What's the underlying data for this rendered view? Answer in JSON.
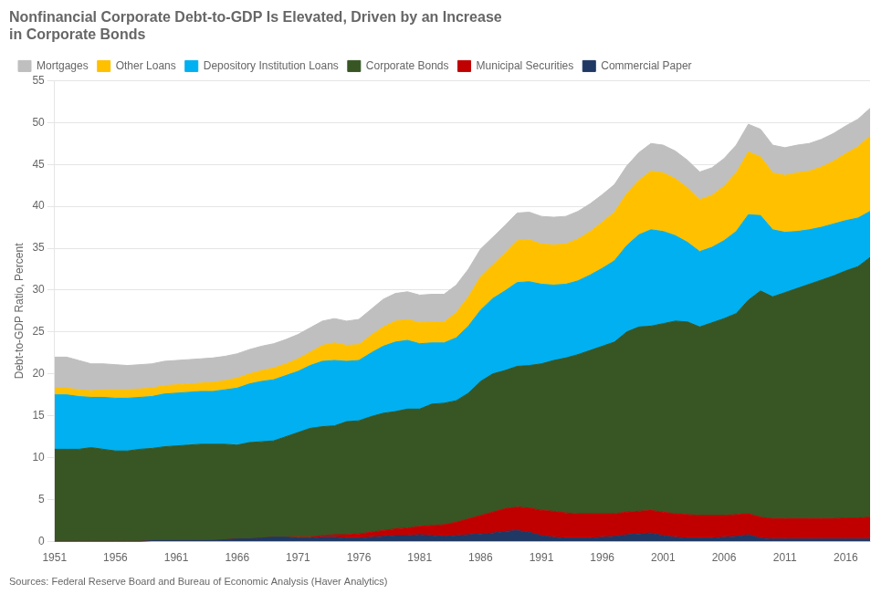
{
  "chart_data": {
    "type": "area",
    "stacked": true,
    "title": "Nonfinancial Corporate Debt-to-GDP Is Elevated, Driven by an Increase\nin Corporate Bonds",
    "ylabel": "Debt-to-GDP Ratio, Percent",
    "source": "Sources: Federal Reserve Board and Bureau of Economic Analysis (Haver Analytics)",
    "x": [
      1951,
      1952,
      1953,
      1954,
      1955,
      1956,
      1957,
      1958,
      1959,
      1960,
      1961,
      1962,
      1963,
      1964,
      1965,
      1966,
      1967,
      1968,
      1969,
      1970,
      1971,
      1972,
      1973,
      1974,
      1975,
      1976,
      1977,
      1978,
      1979,
      1980,
      1981,
      1982,
      1983,
      1984,
      1985,
      1986,
      1987,
      1988,
      1989,
      1990,
      1991,
      1992,
      1993,
      1994,
      1995,
      1996,
      1997,
      1998,
      1999,
      2000,
      2001,
      2002,
      2003,
      2004,
      2005,
      2006,
      2007,
      2008,
      2009,
      2010,
      2011,
      2012,
      2013,
      2014,
      2015,
      2016,
      2017,
      2018
    ],
    "series": [
      {
        "name": "Commercial Paper",
        "color": "#1F3864",
        "values": [
          0.0,
          0.0,
          0.0,
          0.0,
          0.0,
          0.0,
          0.0,
          0.0,
          0.1,
          0.1,
          0.1,
          0.1,
          0.1,
          0.1,
          0.2,
          0.3,
          0.3,
          0.4,
          0.5,
          0.5,
          0.4,
          0.4,
          0.5,
          0.5,
          0.4,
          0.4,
          0.5,
          0.6,
          0.7,
          0.7,
          0.8,
          0.7,
          0.6,
          0.7,
          0.8,
          0.9,
          1.0,
          1.2,
          1.3,
          1.1,
          0.7,
          0.5,
          0.4,
          0.4,
          0.4,
          0.5,
          0.6,
          0.8,
          0.9,
          1.0,
          0.7,
          0.5,
          0.4,
          0.4,
          0.4,
          0.5,
          0.6,
          0.8,
          0.4,
          0.3,
          0.3,
          0.3,
          0.3,
          0.3,
          0.3,
          0.3,
          0.3,
          0.3
        ]
      },
      {
        "name": "Municipal Securities",
        "color": "#C00000",
        "values": [
          0.0,
          0.0,
          0.0,
          0.0,
          0.0,
          0.0,
          0.0,
          0.0,
          0.0,
          0.0,
          0.0,
          0.0,
          0.0,
          0.0,
          0.0,
          0.0,
          0.0,
          0.0,
          0.0,
          0.0,
          0.1,
          0.1,
          0.2,
          0.3,
          0.4,
          0.5,
          0.6,
          0.7,
          0.8,
          0.9,
          1.0,
          1.2,
          1.4,
          1.6,
          1.9,
          2.2,
          2.5,
          2.7,
          2.8,
          2.9,
          3.0,
          3.1,
          3.0,
          2.9,
          2.9,
          2.8,
          2.7,
          2.7,
          2.7,
          2.7,
          2.8,
          2.8,
          2.8,
          2.7,
          2.7,
          2.6,
          2.6,
          2.5,
          2.5,
          2.4,
          2.4,
          2.4,
          2.4,
          2.4,
          2.4,
          2.5,
          2.5,
          2.6
        ]
      },
      {
        "name": "Corporate Bonds",
        "color": "#375623",
        "values": [
          11.0,
          11.0,
          11.0,
          11.2,
          11.0,
          10.8,
          10.8,
          11.0,
          11.0,
          11.2,
          11.3,
          11.4,
          11.5,
          11.5,
          11.4,
          11.2,
          11.5,
          11.5,
          11.5,
          12.0,
          12.5,
          13.0,
          13.0,
          13.0,
          13.5,
          13.5,
          13.8,
          14.0,
          14.0,
          14.2,
          14.0,
          14.5,
          14.5,
          14.5,
          15.0,
          16.0,
          16.5,
          16.5,
          16.8,
          17.0,
          17.5,
          18.0,
          18.5,
          19.0,
          19.5,
          20.0,
          20.5,
          21.5,
          22.0,
          22.0,
          22.5,
          23.0,
          23.0,
          22.5,
          23.0,
          23.5,
          24.0,
          25.5,
          27.0,
          26.5,
          27.0,
          27.5,
          28.0,
          28.5,
          29.0,
          29.5,
          30.0,
          31.0
        ]
      },
      {
        "name": "Depository Institution Loans",
        "color": "#00B0F0",
        "values": [
          6.5,
          6.5,
          6.3,
          6.0,
          6.2,
          6.3,
          6.3,
          6.2,
          6.2,
          6.3,
          6.3,
          6.3,
          6.3,
          6.3,
          6.5,
          6.8,
          7.0,
          7.2,
          7.3,
          7.3,
          7.3,
          7.5,
          7.8,
          7.8,
          7.2,
          7.2,
          7.6,
          8.0,
          8.3,
          8.2,
          7.8,
          7.3,
          7.2,
          7.5,
          8.0,
          8.5,
          9.0,
          9.5,
          10.0,
          10.0,
          9.5,
          9.0,
          8.8,
          8.8,
          9.0,
          9.3,
          9.7,
          10.3,
          11.0,
          11.5,
          11.0,
          10.2,
          9.5,
          9.0,
          9.0,
          9.3,
          9.8,
          10.2,
          9.0,
          8.0,
          7.2,
          6.8,
          6.5,
          6.3,
          6.2,
          6.0,
          5.8,
          5.5
        ]
      },
      {
        "name": "Other Loans",
        "color": "#FFC000",
        "values": [
          0.8,
          0.8,
          0.8,
          0.8,
          0.9,
          1.0,
          1.0,
          1.0,
          1.0,
          1.0,
          1.0,
          1.0,
          1.0,
          1.1,
          1.1,
          1.2,
          1.2,
          1.3,
          1.4,
          1.4,
          1.5,
          1.6,
          1.9,
          2.1,
          1.9,
          1.9,
          2.1,
          2.3,
          2.5,
          2.5,
          2.5,
          2.5,
          2.5,
          3.0,
          3.5,
          4.0,
          4.0,
          4.5,
          5.0,
          5.0,
          4.8,
          4.8,
          4.8,
          5.0,
          5.2,
          5.5,
          5.8,
          6.2,
          6.5,
          7.0,
          7.0,
          6.8,
          6.5,
          6.2,
          6.2,
          6.5,
          7.0,
          7.5,
          7.0,
          6.8,
          6.8,
          7.0,
          7.0,
          7.2,
          7.5,
          8.0,
          8.5,
          9.0
        ]
      },
      {
        "name": "Mortgages",
        "color": "#BFBFBF",
        "values": [
          3.7,
          3.7,
          3.5,
          3.2,
          3.1,
          3.0,
          2.9,
          2.9,
          2.9,
          2.9,
          2.9,
          2.9,
          2.9,
          2.9,
          2.9,
          2.9,
          2.9,
          2.9,
          2.9,
          2.9,
          2.9,
          2.9,
          2.9,
          2.9,
          2.9,
          3.0,
          3.1,
          3.3,
          3.3,
          3.3,
          3.3,
          3.3,
          3.3,
          3.3,
          3.3,
          3.3,
          3.3,
          3.3,
          3.3,
          3.3,
          3.3,
          3.3,
          3.3,
          3.3,
          3.3,
          3.3,
          3.3,
          3.3,
          3.3,
          3.3,
          3.3,
          3.3,
          3.3,
          3.3,
          3.3,
          3.3,
          3.3,
          3.3,
          3.3,
          3.3,
          3.3,
          3.3,
          3.3,
          3.3,
          3.3,
          3.3,
          3.3,
          3.3
        ]
      }
    ],
    "xlim": [
      1951,
      2018
    ],
    "xticks": [
      1951,
      1956,
      1961,
      1966,
      1971,
      1976,
      1981,
      1986,
      1991,
      1996,
      2001,
      2006,
      2011,
      2016
    ],
    "ylim": [
      0,
      55
    ],
    "yticks": [
      0,
      5,
      10,
      15,
      20,
      25,
      30,
      35,
      40,
      45,
      50,
      55
    ],
    "grid": true,
    "legend": "upper left"
  }
}
